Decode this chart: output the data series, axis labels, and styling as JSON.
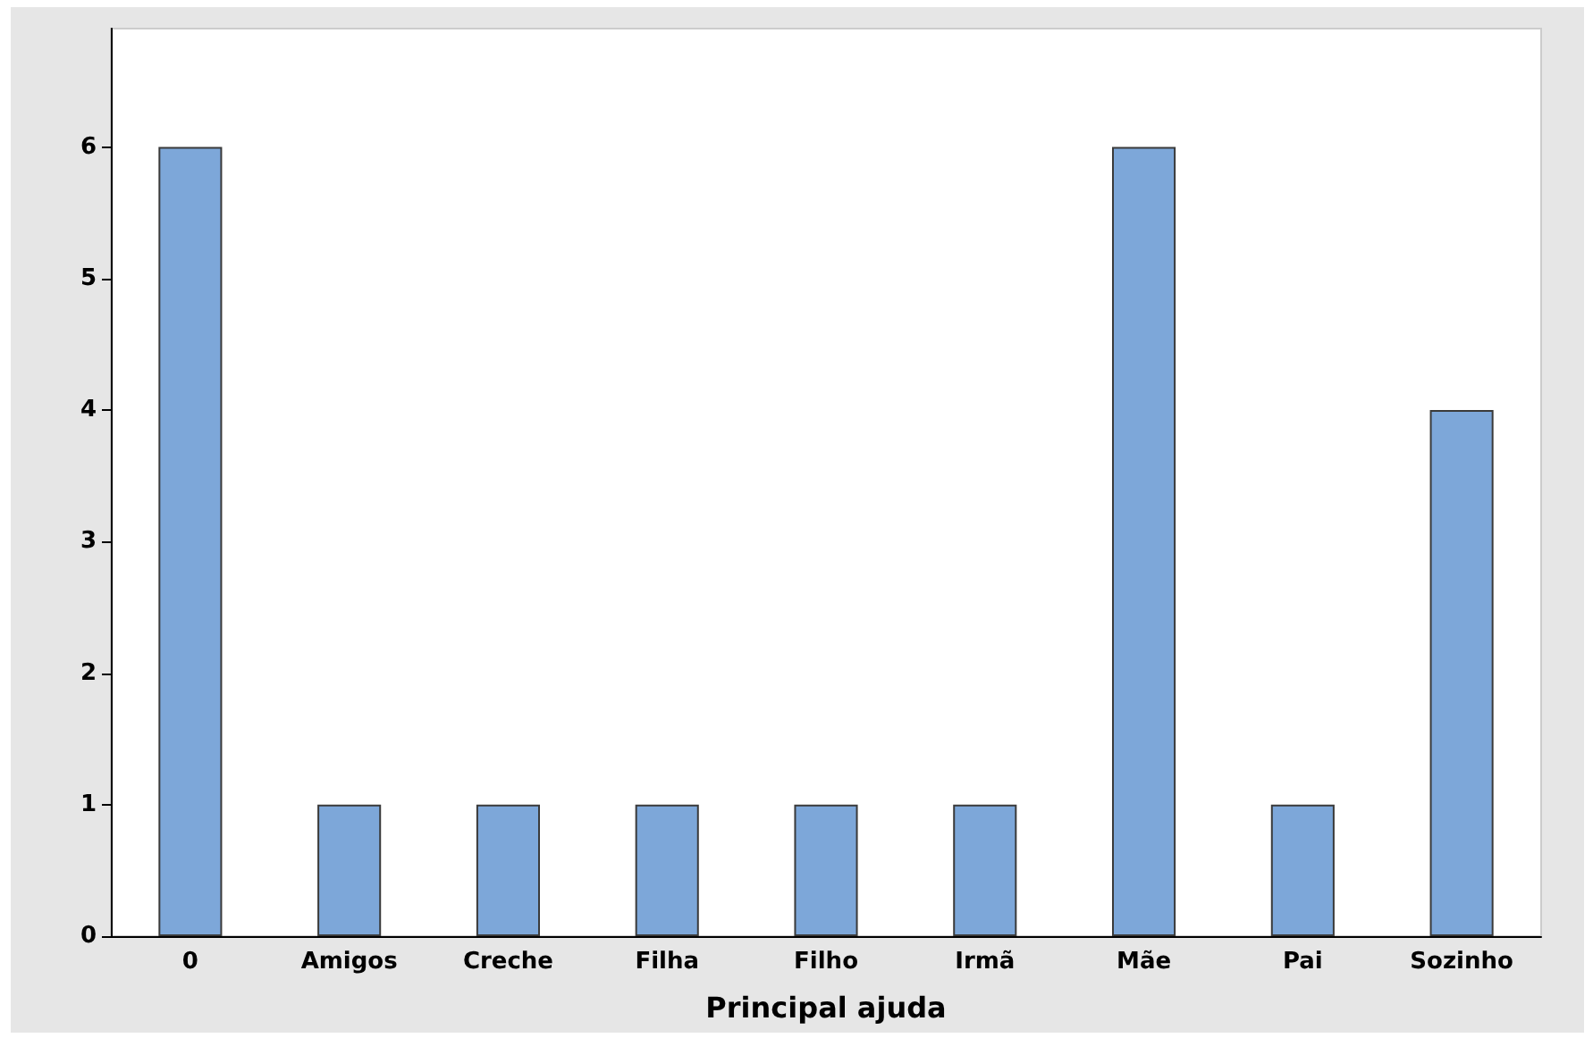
{
  "chart_data": {
    "type": "bar",
    "xlabel": "Principal ajuda",
    "categories": [
      "0",
      "Amigos",
      "Creche",
      "Filha",
      "Filho",
      "Irmã",
      "Mãe",
      "Pai",
      "Sozinho"
    ],
    "values": [
      6,
      1,
      1,
      1,
      1,
      1,
      6,
      1,
      4
    ],
    "color": "#7da7d9",
    "ylim": [
      0,
      6.9
    ],
    "yticks": [
      0,
      1,
      2,
      3,
      4,
      5,
      6
    ],
    "grid": false
  }
}
